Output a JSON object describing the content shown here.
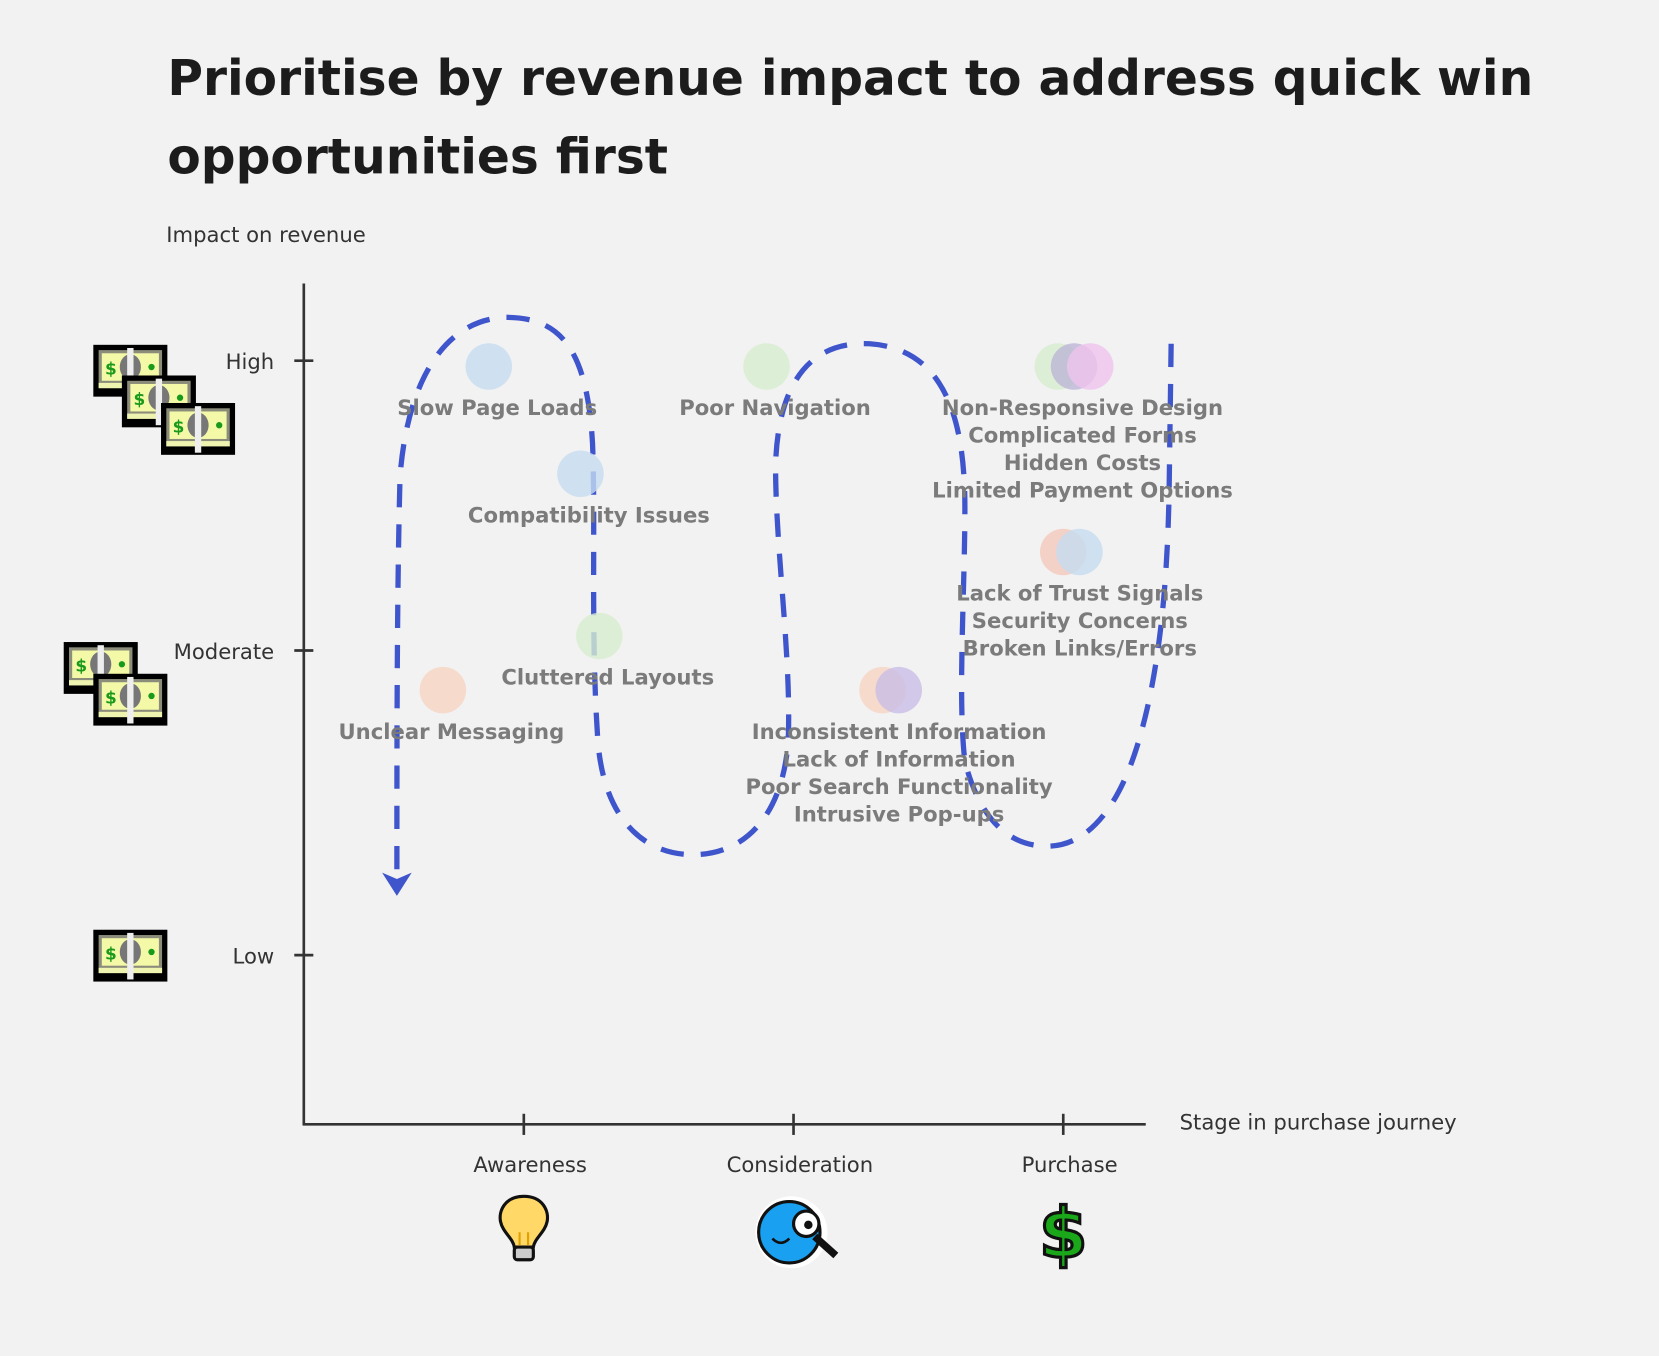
{
  "chart_data": {
    "type": "scatter",
    "title": "Prioritise by revenue impact to address quick win opportunities first",
    "title_lines": [
      "Prioritise by revenue impact to address quick win",
      "opportunities first"
    ],
    "ylabel": "Impact on revenue",
    "xlabel": "Stage in purchase journey",
    "x_ticks": [
      {
        "label": "Awareness",
        "value": 1,
        "icon": "lightbulb-icon"
      },
      {
        "label": "Consideration",
        "value": 2,
        "icon": "magnifier-face-icon"
      },
      {
        "label": "Purchase",
        "value": 3,
        "icon": "dollar-sign-icon"
      }
    ],
    "y_ticks": [
      {
        "label": "High",
        "value": 3,
        "icon": "money-stack-3-icon"
      },
      {
        "label": "Moderate",
        "value": 2,
        "icon": "money-stack-2-icon"
      },
      {
        "label": "Low",
        "value": 1,
        "icon": "money-stack-1-icon"
      }
    ],
    "clusters": [
      {
        "y": 2.98,
        "circles": [
          {
            "x": 0.87,
            "color": "#c6dcf0"
          }
        ],
        "labels": [
          "Slow Page Loads"
        ]
      },
      {
        "y": 2.61,
        "circles": [
          {
            "x": 1.21,
            "color": "#c6dcf0"
          }
        ],
        "labels": [
          "Compatibility Issues"
        ]
      },
      {
        "y": 2.05,
        "circles": [
          {
            "x": 1.28,
            "color": "#d7ecd0"
          }
        ],
        "labels": [
          "Cluttered Layouts"
        ]
      },
      {
        "y": 1.87,
        "circles": [
          {
            "x": 0.7,
            "color": "#f6d3c2"
          }
        ],
        "labels": [
          "Unclear Messaging"
        ]
      },
      {
        "y": 2.98,
        "circles": [
          {
            "x": 1.9,
            "color": "#d7ecd0"
          }
        ],
        "labels": [
          "Poor Navigation"
        ]
      },
      {
        "y": 1.87,
        "circles": [
          {
            "x": 2.33,
            "color": "#f6d3c2"
          },
          {
            "x": 2.39,
            "color": "#c9bde6"
          }
        ],
        "labels": [
          "Inconsistent Information",
          "Lack of Information",
          "Poor Search Functionality",
          "Intrusive Pop-ups"
        ]
      },
      {
        "y": 2.98,
        "circles": [
          {
            "x": 2.98,
            "color": "#d7ecd0"
          },
          {
            "x": 3.04,
            "color": "#bdb5d6"
          },
          {
            "x": 3.1,
            "color": "#efc3ee"
          }
        ],
        "labels": [
          "Non-Responsive Design",
          "Complicated Forms",
          "Hidden Costs",
          "Limited Payment Options"
        ]
      },
      {
        "y": 2.34,
        "circles": [
          {
            "x": 3.0,
            "color": "#f4c8bc"
          },
          {
            "x": 3.06,
            "color": "#c6dcf0"
          }
        ],
        "labels": [
          "Lack of Trust Signals",
          "Security Concerns",
          "Broken Links/Errors"
        ]
      }
    ],
    "path_color": "#3f55cc",
    "grid": false
  }
}
